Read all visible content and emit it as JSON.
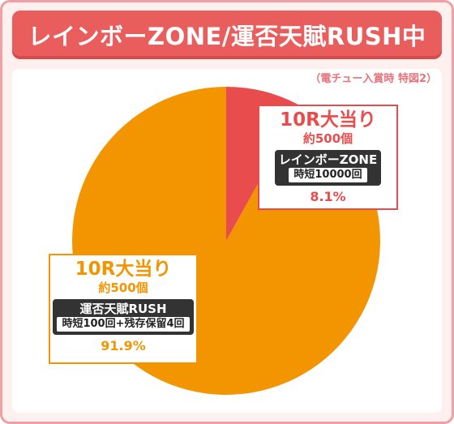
{
  "header": {
    "title": "レインボーZONE/運否天賦RUSH中",
    "note": "（電チュー入賞時 特図2）"
  },
  "colors": {
    "red": "#e84c4c",
    "orange": "#f39500",
    "title_bg": "#ea5d5d"
  },
  "chart_data": {
    "type": "pie",
    "title": "レインボーZONE/運否天賦RUSH中",
    "slices": [
      {
        "heading": "10R大当り",
        "payout": "約500個",
        "mode": "レインボーZONE",
        "detail": "時短10000回",
        "value": 8.1,
        "value_label": "8.1%",
        "color": "#e84c4c"
      },
      {
        "heading": "10R大当り",
        "payout": "約500個",
        "mode": "運否天賦RUSH",
        "detail": "時短100回+残存保留4回",
        "value": 91.9,
        "value_label": "91.9%",
        "color": "#f39500"
      }
    ]
  }
}
